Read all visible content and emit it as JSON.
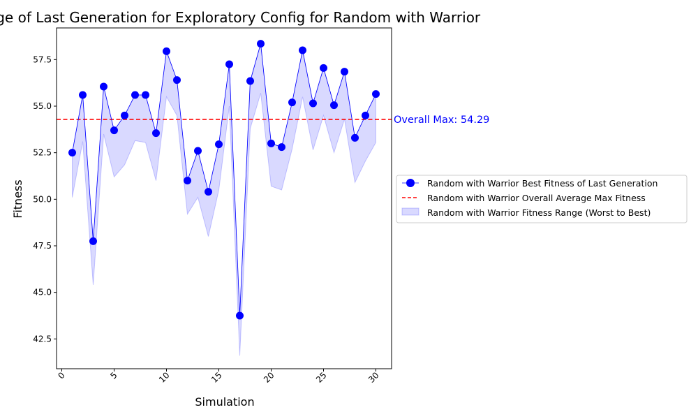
{
  "chart_data": {
    "type": "line",
    "title": "Range of Last Generation for Exploratory Config for Random with Warrior",
    "xlabel": "Simulation",
    "ylabel": "Fitness",
    "xlim": [
      -0.5,
      31.5
    ],
    "ylim": [
      40.9,
      59.2
    ],
    "xticks": [
      0,
      5,
      10,
      15,
      20,
      25,
      30
    ],
    "yticks": [
      42.5,
      45.0,
      47.5,
      50.0,
      52.5,
      55.0,
      57.5
    ],
    "grid": false,
    "legend_position": "right",
    "x": [
      1,
      2,
      3,
      4,
      5,
      6,
      7,
      8,
      9,
      10,
      11,
      12,
      13,
      14,
      15,
      16,
      17,
      18,
      19,
      20,
      21,
      22,
      23,
      24,
      25,
      26,
      27,
      28,
      29,
      30
    ],
    "series": [
      {
        "name": "Random with Warrior Best Fitness of Last Generation",
        "style": "line-markers",
        "color": "#0000ff",
        "values": [
          52.5,
          55.6,
          47.75,
          56.05,
          53.7,
          54.5,
          55.6,
          55.6,
          53.55,
          57.95,
          56.4,
          51.0,
          52.6,
          50.4,
          52.95,
          57.25,
          43.75,
          56.35,
          58.35,
          53.0,
          52.8,
          55.2,
          58.0,
          55.15,
          57.05,
          55.05,
          56.85,
          53.3,
          54.5,
          55.65
        ]
      },
      {
        "name": "Random with Warrior Overall Average Max Fitness",
        "style": "dashed-hline",
        "color": "#ff0000",
        "value": 54.29
      },
      {
        "name": "Random with Warrior Fitness Range (Worst to Best)",
        "style": "band",
        "color": "#0000ff",
        "lower": [
          50.1,
          53.1,
          45.4,
          53.5,
          51.2,
          51.85,
          53.15,
          53.05,
          51.0,
          55.5,
          54.5,
          49.2,
          50.1,
          48.0,
          50.5,
          55.0,
          41.6,
          53.8,
          55.7,
          50.7,
          50.5,
          52.7,
          55.5,
          52.65,
          54.5,
          52.5,
          54.3,
          50.9,
          52.05,
          53.05
        ],
        "upper": [
          52.5,
          55.6,
          47.75,
          56.05,
          53.7,
          54.5,
          55.6,
          55.6,
          53.55,
          57.95,
          56.4,
          51.0,
          52.6,
          50.4,
          52.95,
          57.25,
          43.75,
          56.35,
          58.35,
          53.0,
          52.8,
          55.2,
          58.0,
          55.15,
          57.05,
          55.05,
          56.85,
          53.3,
          54.5,
          55.65
        ]
      }
    ],
    "annotations": [
      {
        "text": "Overall Max: 54.29",
        "y": 54.29,
        "color": "#0000ff"
      }
    ]
  }
}
